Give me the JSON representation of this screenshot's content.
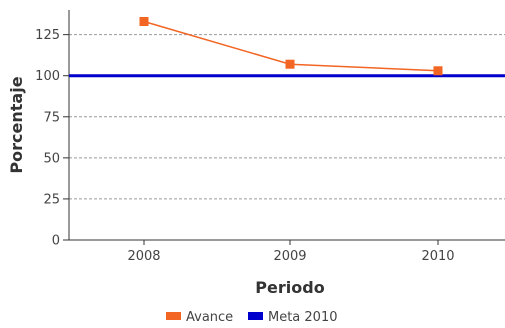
{
  "chart_data": {
    "type": "line",
    "title": "",
    "xlabel": "Periodo",
    "ylabel": "Porcentaje",
    "categories": [
      "2008",
      "2009",
      "2010"
    ],
    "ylim": [
      0,
      140
    ],
    "yticks": [
      0,
      25,
      50,
      75,
      100,
      125
    ],
    "grid": "horizontal-dashed",
    "legend_position": "bottom",
    "series": [
      {
        "name": "Avance",
        "values": [
          133,
          107,
          103
        ],
        "color": "#f26522"
      },
      {
        "name": "Meta 2010",
        "values": [
          100,
          100,
          100
        ],
        "color": "#0000cc"
      }
    ]
  }
}
